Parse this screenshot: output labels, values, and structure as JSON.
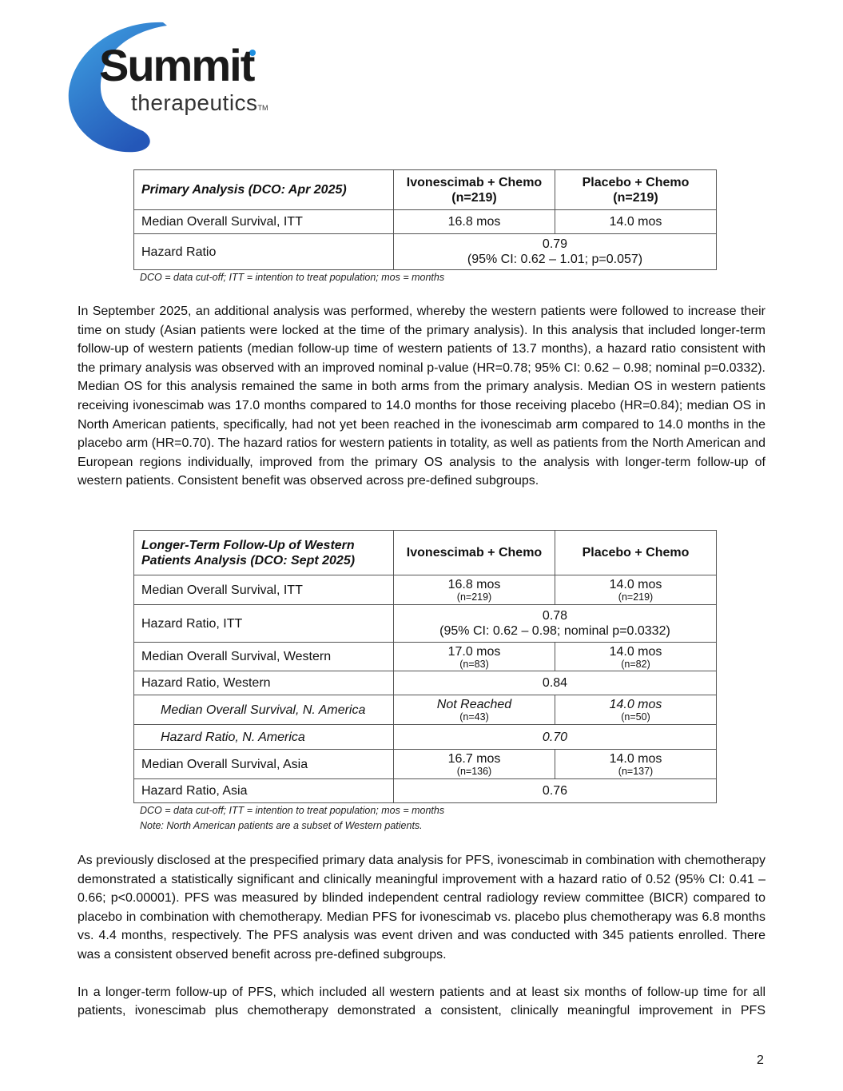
{
  "logo": {
    "word": "Summit",
    "sub": "therapeutics",
    "tm": "TM",
    "colors": {
      "swoosh_light": "#3fa3e3",
      "swoosh_dark": "#2457b8",
      "text": "#1a1a1a",
      "dot": "#1e8fe0"
    }
  },
  "table1": {
    "headers": [
      "Primary Analysis (DCO: Apr 2025)",
      "Ivonescimab + Chemo (n=219)",
      "Placebo + Chemo (n=219)"
    ],
    "rows": [
      {
        "label": "Median Overall Survival, ITT",
        "ivo": "16.8 mos",
        "pbo": "14.0 mos"
      },
      {
        "label": "Hazard Ratio",
        "value": "0.79",
        "detail": "(95% CI: 0.62 – 1.01; p=0.057)"
      }
    ],
    "footnote": "DCO = data cut-off; ITT = intention to treat population; mos = months"
  },
  "paragraph1": "In September 2025, an additional analysis was performed, whereby the western patients were followed to increase their time on study (Asian patients were locked at the time of the primary analysis). In this analysis that included longer-term follow-up of western patients (median follow-up time of western patients of 13.7 months), a hazard ratio consistent with the primary analysis was observed with an improved nominal p-value (HR=0.78; 95% CI: 0.62 – 0.98; nominal p=0.0332). Median OS for this analysis remained the same in both arms from the primary analysis. Median OS in western patients receiving ivonescimab was 17.0 months compared to 14.0 months for those receiving placebo (HR=0.84); median OS in North American patients, specifically, had not yet been reached in the ivonescimab arm compared to 14.0 months in the placebo arm (HR=0.70). The hazard ratios for western patients in totality, as well as patients from the North American and European regions individually, improved from the primary OS analysis to the analysis with longer-term follow-up of western patients. Consistent benefit was observed across pre-defined subgroups.",
  "table2": {
    "headers": [
      "Longer-Term Follow-Up of Western Patients Analysis (DCO: Sept 2025)",
      "Ivonescimab + Chemo",
      "Placebo + Chemo"
    ],
    "rows": [
      {
        "label": "Median Overall Survival, ITT",
        "ivo": "16.8 mos",
        "ivo_n": "(n=219)",
        "pbo": "14.0 mos",
        "pbo_n": "(n=219)"
      },
      {
        "label": "Hazard Ratio, ITT",
        "value": "0.78",
        "detail": "(95% CI: 0.62 – 0.98; nominal p=0.0332)"
      },
      {
        "label": "Median Overall Survival, Western",
        "ivo": "17.0 mos",
        "ivo_n": "(n=83)",
        "pbo": "14.0 mos",
        "pbo_n": "(n=82)"
      },
      {
        "label": "Hazard Ratio, Western",
        "value": "0.84"
      },
      {
        "label": "Median Overall Survival, N. America",
        "ivo": "Not Reached",
        "ivo_n": "(n=43)",
        "pbo": "14.0 mos",
        "pbo_n": "(n=50)"
      },
      {
        "label": "Hazard Ratio, N. America",
        "value": "0.70"
      },
      {
        "label": "Median Overall Survival, Asia",
        "ivo": "16.7 mos",
        "ivo_n": "(n=136)",
        "pbo": "14.0 mos",
        "pbo_n": "(n=137)"
      },
      {
        "label": "Hazard Ratio, Asia",
        "value": "0.76"
      }
    ],
    "footnote": "DCO = data cut-off; ITT = intention to treat population; mos = months",
    "note": "Note: North American patients are a subset of Western patients."
  },
  "paragraph2": "As previously disclosed at the prespecified primary data analysis for PFS, ivonescimab in combination with chemotherapy demonstrated a statistically significant and clinically meaningful improvement with a hazard ratio of 0.52 (95% CI: 0.41 – 0.66; p<0.00001). PFS was measured by blinded independent central radiology review committee (BICR) compared to placebo in combination with chemotherapy. Median PFS for ivonescimab vs. placebo plus chemotherapy was 6.8 months vs. 4.4 months, respectively. The PFS analysis was event driven and was conducted with 345 patients enrolled. There was a consistent observed benefit across pre-defined subgroups.",
  "paragraph3": "In a longer-term follow-up of PFS, which included all western patients and at least six months of follow-up time for all patients, ivonescimab plus chemotherapy demonstrated a consistent, clinically meaningful improvement in PFS",
  "page_number": "2"
}
